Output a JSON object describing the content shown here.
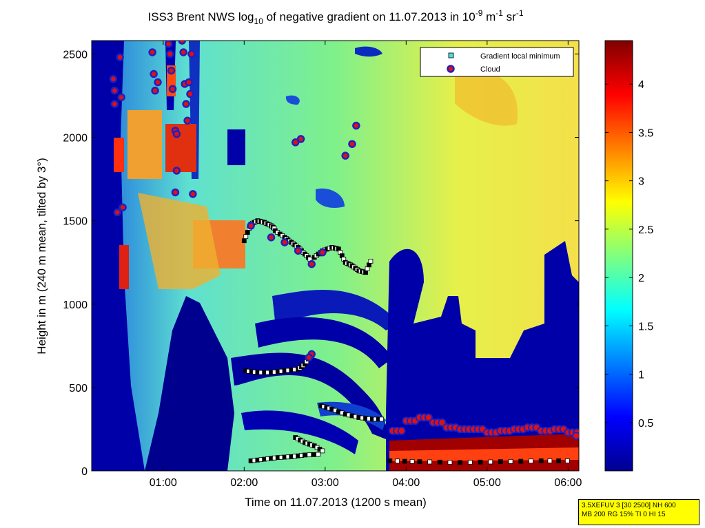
{
  "chart_data": {
    "type": "heatmap",
    "title": {
      "prefix": "ISS3 Brent NWS log",
      "sub": "10",
      "middle": " of negative gradient on 11.07.2013 in 10",
      "exp1": "-9",
      "unit1": " m",
      "exp2": "-1",
      "unit2": " sr",
      "exp3": "-1"
    },
    "xlabel": "Time on 11.07.2013 (1200 s mean)",
    "ylabel": "Height in m (240 m mean, tilted by 3°)",
    "x_ticks": [
      "01:00",
      "02:00",
      "03:00",
      "04:00",
      "05:00",
      "06:00"
    ],
    "x_tick_values": [
      60,
      120,
      180,
      240,
      300,
      360
    ],
    "xlim": [
      7,
      368
    ],
    "y_ticks": [
      "0",
      "500",
      "1000",
      "1500",
      "2000",
      "2500"
    ],
    "y_tick_values": [
      0,
      500,
      1000,
      1500,
      2000,
      2500
    ],
    "ylim": [
      0,
      2580
    ],
    "colorbar": {
      "ticks": [
        "0.5",
        "1",
        "1.5",
        "2",
        "2.5",
        "3",
        "3.5",
        "4"
      ],
      "tick_values": [
        0.5,
        1,
        1.5,
        2,
        2.5,
        3,
        3.5,
        4
      ],
      "range": [
        0,
        4.45
      ],
      "colormap": "jet"
    },
    "legend": {
      "position": "top-right",
      "entries": [
        {
          "label": "Gradient local minimum",
          "marker": "square",
          "color": "#4fd8e0"
        },
        {
          "label": "Cloud",
          "marker": "circle",
          "color": "#e01010",
          "edge": "#2020c0"
        }
      ]
    },
    "gradient_minimum_tracks": [
      {
        "x": [
          120,
          125,
          130,
          135,
          140,
          143
        ],
        "y": [
          1380,
          1480,
          1500,
          1490,
          1470,
          1450
        ]
      },
      {
        "x": [
          143,
          150,
          155,
          160,
          165,
          170
        ],
        "y": [
          1440,
          1400,
          1370,
          1340,
          1300,
          1260
        ]
      },
      {
        "x": [
          172,
          178,
          185,
          190
        ],
        "y": [
          1280,
          1320,
          1340,
          1330
        ]
      },
      {
        "x": [
          190,
          195,
          200,
          205,
          210,
          215
        ],
        "y": [
          1330,
          1250,
          1230,
          1200,
          1190,
          1280
        ]
      },
      {
        "x": [
          121,
          130,
          140,
          150,
          160,
          165,
          170
        ],
        "y": [
          600,
          590,
          590,
          600,
          610,
          640,
          700
        ]
      },
      {
        "x": [
          177,
          185,
          195,
          205,
          215,
          224
        ],
        "y": [
          390,
          370,
          340,
          320,
          310,
          310
        ]
      },
      {
        "x": [
          158,
          165,
          172,
          180
        ],
        "y": [
          200,
          170,
          150,
          110
        ]
      },
      {
        "x": [
          125,
          135,
          145,
          155,
          165,
          178
        ],
        "y": [
          60,
          70,
          80,
          85,
          95,
          100
        ]
      },
      {
        "x": [
          228,
          250,
          280,
          310,
          340,
          366
        ],
        "y": [
          60,
          55,
          50,
          55,
          60,
          60
        ]
      }
    ],
    "cloud_points": [
      {
        "x": 23,
        "y": 2350
      },
      {
        "x": 24,
        "y": 2280
      },
      {
        "x": 24,
        "y": 2200
      },
      {
        "x": 28,
        "y": 2480
      },
      {
        "x": 29,
        "y": 2240
      },
      {
        "x": 30,
        "y": 1580
      },
      {
        "x": 26,
        "y": 1550
      },
      {
        "x": 52,
        "y": 2510
      },
      {
        "x": 53,
        "y": 2380
      },
      {
        "x": 54,
        "y": 2280
      },
      {
        "x": 56,
        "y": 2330
      },
      {
        "x": 64,
        "y": 2560
      },
      {
        "x": 65,
        "y": 2500
      },
      {
        "x": 66,
        "y": 2400
      },
      {
        "x": 67,
        "y": 2290
      },
      {
        "x": 69,
        "y": 2040
      },
      {
        "x": 70,
        "y": 2020
      },
      {
        "x": 70,
        "y": 1800
      },
      {
        "x": 69,
        "y": 1670
      },
      {
        "x": 74,
        "y": 2580
      },
      {
        "x": 75,
        "y": 2510
      },
      {
        "x": 76,
        "y": 2320
      },
      {
        "x": 77,
        "y": 2200
      },
      {
        "x": 78,
        "y": 2100
      },
      {
        "x": 79,
        "y": 2330
      },
      {
        "x": 80,
        "y": 2260
      },
      {
        "x": 81,
        "y": 2500
      },
      {
        "x": 82,
        "y": 1660
      },
      {
        "x": 125,
        "y": 1470
      },
      {
        "x": 140,
        "y": 1400
      },
      {
        "x": 150,
        "y": 1370
      },
      {
        "x": 160,
        "y": 1320
      },
      {
        "x": 170,
        "y": 1240
      },
      {
        "x": 178,
        "y": 1310
      },
      {
        "x": 158,
        "y": 1970
      },
      {
        "x": 162,
        "y": 1990
      },
      {
        "x": 195,
        "y": 1890
      },
      {
        "x": 200,
        "y": 1960
      },
      {
        "x": 203,
        "y": 2070
      },
      {
        "x": 170,
        "y": 700
      },
      {
        "x": 168,
        "y": 680
      }
    ],
    "cloud_band": {
      "x": [
        230,
        240,
        250,
        260,
        270,
        280,
        290,
        300,
        310,
        320,
        330,
        340,
        350,
        360,
        366
      ],
      "y": [
        240,
        300,
        320,
        290,
        260,
        250,
        250,
        230,
        240,
        250,
        260,
        240,
        250,
        230,
        210
      ]
    }
  },
  "info_box": {
    "line1": "3.5XEFUV 3 [30 2500] NH 600",
    "line2": "MB 200 RG 15% TI 0 HI 15"
  }
}
